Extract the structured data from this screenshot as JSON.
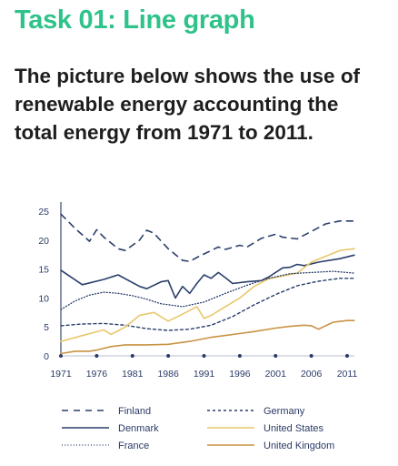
{
  "header": {
    "title": "Task 01: Line graph",
    "description": "The picture below shows the use of renewable energy accounting the total energy from 1971 to 2011."
  },
  "chart_data": {
    "type": "line",
    "title": "",
    "xlabel": "",
    "ylabel": "",
    "x_ticks": [
      "1971",
      "1976",
      "1981",
      "1986",
      "1991",
      "1996",
      "2001",
      "2006",
      "2011"
    ],
    "y_ticks": [
      "0",
      "5",
      "10",
      "15",
      "20",
      "25"
    ],
    "xlim": [
      1971,
      2012
    ],
    "ylim": [
      0,
      26
    ],
    "grid": false,
    "legend_position": "bottom",
    "series": [
      {
        "name": "Finland",
        "color": "#2b3f6b",
        "dash": "7,6",
        "width": 1.6,
        "points": [
          [
            1971,
            24.5
          ],
          [
            1973,
            22
          ],
          [
            1975,
            19.8
          ],
          [
            1976,
            21.8
          ],
          [
            1977,
            20.5
          ],
          [
            1979,
            18.5
          ],
          [
            1980,
            18.2
          ],
          [
            1982,
            20
          ],
          [
            1983,
            21.7
          ],
          [
            1984,
            21.2
          ],
          [
            1986,
            18.5
          ],
          [
            1988,
            16.5
          ],
          [
            1989,
            16.3
          ],
          [
            1990,
            17
          ],
          [
            1992,
            18.2
          ],
          [
            1993,
            18.8
          ],
          [
            1994,
            18.4
          ],
          [
            1996,
            19.1
          ],
          [
            1997,
            18.8
          ],
          [
            1999,
            20.3
          ],
          [
            2001,
            21
          ],
          [
            2002,
            20.5
          ],
          [
            2004,
            20.2
          ],
          [
            2006,
            21.5
          ],
          [
            2008,
            22.8
          ],
          [
            2010,
            23.3
          ],
          [
            2012,
            23.3
          ]
        ]
      },
      {
        "name": "Germany",
        "color": "#2b3f6b",
        "dash": "3,3",
        "width": 1.4,
        "points": [
          [
            1971,
            5.2
          ],
          [
            1974,
            5.5
          ],
          [
            1977,
            5.6
          ],
          [
            1980,
            5.3
          ],
          [
            1983,
            4.7
          ],
          [
            1986,
            4.4
          ],
          [
            1989,
            4.6
          ],
          [
            1992,
            5.3
          ],
          [
            1995,
            6.8
          ],
          [
            1998,
            8.8
          ],
          [
            2001,
            10.6
          ],
          [
            2004,
            12.1
          ],
          [
            2007,
            12.9
          ],
          [
            2010,
            13.4
          ],
          [
            2012,
            13.4
          ]
        ]
      },
      {
        "name": "Denmark",
        "color": "#2b3f6b",
        "dash": "",
        "width": 1.6,
        "points": [
          [
            1971,
            14.8
          ],
          [
            1974,
            12.3
          ],
          [
            1977,
            13.2
          ],
          [
            1979,
            14
          ],
          [
            1982,
            12
          ],
          [
            1983,
            11.6
          ],
          [
            1985,
            12.8
          ],
          [
            1986,
            13
          ],
          [
            1987,
            10
          ],
          [
            1988,
            12
          ],
          [
            1989,
            10.8
          ],
          [
            1990,
            12.5
          ],
          [
            1991,
            14
          ],
          [
            1992,
            13.4
          ],
          [
            1993,
            14.4
          ],
          [
            1994,
            13.5
          ],
          [
            1995,
            12.5
          ],
          [
            1997,
            12.8
          ],
          [
            1999,
            13
          ],
          [
            2000,
            13.6
          ],
          [
            2002,
            15.2
          ],
          [
            2003,
            15.3
          ],
          [
            2004,
            15.8
          ],
          [
            2005,
            15.6
          ],
          [
            2007,
            16.2
          ],
          [
            2009,
            16.6
          ],
          [
            2010,
            16.8
          ],
          [
            2012,
            17.4
          ]
        ]
      },
      {
        "name": "United States",
        "color": "#e8c76a",
        "dash": "",
        "width": 1.6,
        "points": [
          [
            1971,
            2.5
          ],
          [
            1974,
            3.5
          ],
          [
            1977,
            4.5
          ],
          [
            1978,
            3.7
          ],
          [
            1980,
            5
          ],
          [
            1982,
            7
          ],
          [
            1984,
            7.5
          ],
          [
            1986,
            6
          ],
          [
            1988,
            7.2
          ],
          [
            1990,
            8.5
          ],
          [
            1991,
            6.5
          ],
          [
            1992,
            7
          ],
          [
            1994,
            8.5
          ],
          [
            1996,
            10
          ],
          [
            1998,
            12
          ],
          [
            2000,
            13.3
          ],
          [
            2002,
            13.8
          ],
          [
            2004,
            14.3
          ],
          [
            2006,
            16.2
          ],
          [
            2008,
            17.2
          ],
          [
            2010,
            18.2
          ],
          [
            2012,
            18.5
          ]
        ]
      },
      {
        "name": "France",
        "color": "#2b3f6b",
        "dash": "1,2.2",
        "width": 1.3,
        "points": [
          [
            1971,
            8
          ],
          [
            1973,
            9.5
          ],
          [
            1975,
            10.5
          ],
          [
            1977,
            11
          ],
          [
            1979,
            10.8
          ],
          [
            1981,
            10.4
          ],
          [
            1983,
            9.8
          ],
          [
            1985,
            9
          ],
          [
            1988,
            8.5
          ],
          [
            1991,
            9.3
          ],
          [
            1994,
            10.8
          ],
          [
            1997,
            12.2
          ],
          [
            2000,
            13.4
          ],
          [
            2003,
            14.2
          ],
          [
            2006,
            14.4
          ],
          [
            2009,
            14.6
          ],
          [
            2012,
            14.3
          ]
        ]
      },
      {
        "name": "United Kingdom",
        "color": "#c99344",
        "dash": "",
        "width": 1.6,
        "points": [
          [
            1971,
            0.4
          ],
          [
            1973,
            0.8
          ],
          [
            1975,
            0.8
          ],
          [
            1976,
            1
          ],
          [
            1978,
            1.6
          ],
          [
            1980,
            1.9
          ],
          [
            1983,
            1.9
          ],
          [
            1986,
            2
          ],
          [
            1989,
            2.5
          ],
          [
            1992,
            3.2
          ],
          [
            1995,
            3.7
          ],
          [
            1998,
            4.2
          ],
          [
            2001,
            4.8
          ],
          [
            2003,
            5.1
          ],
          [
            2005,
            5.3
          ],
          [
            2006,
            5.2
          ],
          [
            2007,
            4.6
          ],
          [
            2009,
            5.8
          ],
          [
            2011,
            6.1
          ],
          [
            2012,
            6.1
          ]
        ]
      }
    ],
    "legend": [
      {
        "name": "Finland",
        "column": 0,
        "row": 0
      },
      {
        "name": "Germany",
        "column": 1,
        "row": 0
      },
      {
        "name": "Denmark",
        "column": 0,
        "row": 1
      },
      {
        "name": "United States",
        "column": 1,
        "row": 1
      },
      {
        "name": "France",
        "column": 0,
        "row": 2
      },
      {
        "name": "United Kingdom",
        "column": 1,
        "row": 2
      }
    ]
  }
}
